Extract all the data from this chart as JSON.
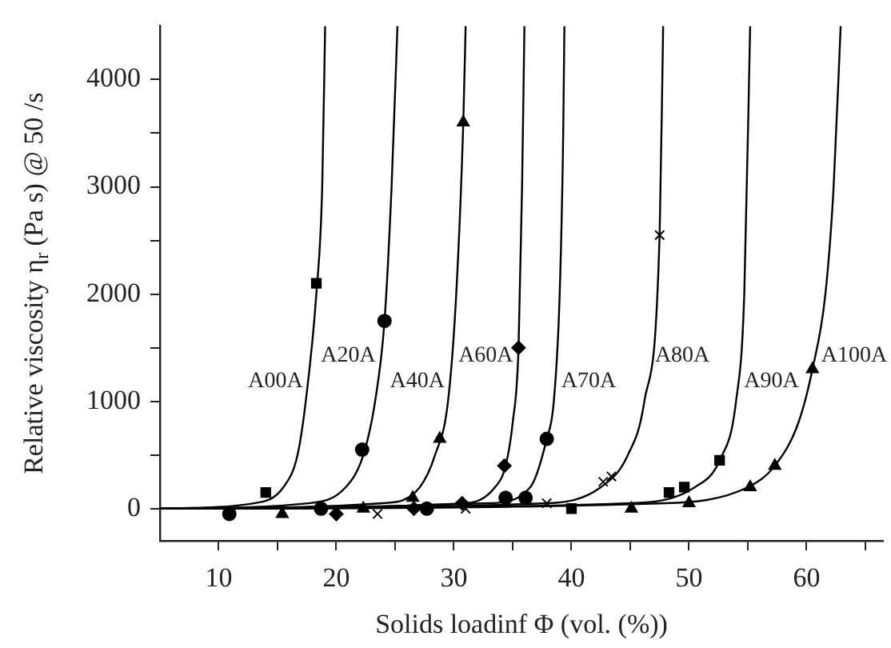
{
  "chart_data": {
    "type": "scatter",
    "xlabel": "Solids loadinf Φ (vol. (%))",
    "ylabel": "Relative viscosity η$_{r}$ (Pa s) @ 50 /s",
    "xlim": [
      5,
      66.5
    ],
    "ylim": [
      -300,
      4500
    ],
    "xticks": [
      10,
      {
        "value": 15,
        "label": null
      },
      20,
      {
        "value": 25,
        "label": null
      },
      30,
      {
        "value": 35,
        "label": null
      },
      40,
      {
        "value": 45,
        "label": null
      },
      50,
      {
        "value": 55,
        "label": null
      },
      60,
      {
        "value": 65,
        "label": null
      }
    ],
    "yticks": [
      0,
      {
        "value": 500,
        "label": null
      },
      1000,
      {
        "value": 1500,
        "label": null
      },
      2000,
      {
        "value": 2500,
        "label": null
      },
      3000,
      {
        "value": 3500,
        "label": null
      },
      4000
    ],
    "grid": false,
    "legend": false,
    "series": [
      {
        "type": "scatter",
        "marker": "square",
        "color": "#000000",
        "x": [
          14.0,
          18.3
        ],
        "values": [
          150,
          2100
        ]
      },
      {
        "type": "scatter",
        "marker": "circle",
        "color": "#000000",
        "x": [
          10.9,
          18.7,
          22.2,
          24.1
        ],
        "values": [
          -50,
          0,
          550,
          1750
        ]
      },
      {
        "type": "scatter",
        "marker": "triangle",
        "color": "#000000",
        "x": [
          15.4,
          22.3,
          26.5,
          28.8,
          30.8
        ],
        "values": [
          -50,
          0,
          100,
          650,
          3600
        ]
      },
      {
        "type": "scatter",
        "marker": "diamond",
        "color": "#000000",
        "x": [
          20.0,
          26.6,
          30.7,
          34.3,
          35.5
        ],
        "values": [
          -50,
          0,
          50,
          400,
          1500
        ]
      },
      {
        "type": "scatter",
        "marker": "circle",
        "color": "#000000",
        "x": [
          27.7,
          34.4,
          36.1,
          37.9
        ],
        "values": [
          0,
          100,
          100,
          650
        ]
      },
      {
        "type": "scatter",
        "marker": "cross",
        "color": "#000000",
        "x": [
          23.5,
          31.0,
          37.9,
          42.7,
          43.4,
          47.5
        ],
        "values": [
          -50,
          0,
          50,
          250,
          300,
          2550
        ]
      },
      {
        "type": "scatter",
        "marker": "square",
        "color": "#000000",
        "x": [
          40.0,
          48.3,
          49.6,
          52.6
        ],
        "values": [
          0,
          150,
          200,
          450
        ]
      },
      {
        "type": "scatter",
        "marker": "triangle",
        "color": "#000000",
        "x": [
          45.1,
          50.0,
          55.2,
          57.3,
          60.5
        ],
        "values": [
          0,
          50,
          200,
          400,
          1300
        ]
      },
      {
        "type": "line",
        "name": "A00A",
        "color": "#000000",
        "x": [
          5,
          13,
          15.5,
          16.7,
          17.4,
          18.3,
          18.8,
          19.05
        ],
        "values": [
          0,
          50,
          200,
          500,
          1000,
          2000,
          3000,
          4500
        ]
      },
      {
        "type": "line",
        "name": "A20A",
        "color": "#000000",
        "x": [
          5,
          17.6,
          20.8,
          22.3,
          23.3,
          24.1,
          24.7,
          25.2
        ],
        "values": [
          0,
          50,
          200,
          500,
          1000,
          1750,
          3000,
          4500
        ]
      },
      {
        "type": "line",
        "name": "A40A",
        "color": "#000000",
        "x": [
          5,
          23.9,
          27.1,
          28.4,
          29.5,
          30.2,
          30.8,
          31.0
        ],
        "values": [
          0,
          50,
          200,
          500,
          1000,
          2000,
          3600,
          4500
        ]
      },
      {
        "type": "line",
        "name": "A60A",
        "color": "#000000",
        "x": [
          5,
          31,
          33.5,
          34.4,
          35.0,
          35.5,
          35.8,
          36.0
        ],
        "values": [
          0,
          50,
          200,
          400,
          800,
          1500,
          3000,
          4500
        ]
      },
      {
        "type": "line",
        "name": "A70A",
        "color": "#000000",
        "x": [
          5,
          33,
          36.5,
          37.9,
          38.5,
          39.0,
          39.3,
          39.4
        ],
        "values": [
          0,
          50,
          200,
          650,
          1000,
          2000,
          3500,
          4500
        ]
      },
      {
        "type": "line",
        "name": "A80A",
        "color": "#000000",
        "x": [
          5,
          38,
          42.5,
          44.8,
          46.2,
          47.5,
          47.8
        ],
        "values": [
          0,
          50,
          200,
          500,
          1000,
          2550,
          4500
        ]
      },
      {
        "type": "line",
        "name": "A90A",
        "color": "#000000",
        "x": [
          5,
          45,
          50.5,
          52.6,
          54,
          54.7,
          55.2
        ],
        "values": [
          0,
          50,
          200,
          450,
          1000,
          2000,
          4500
        ]
      },
      {
        "type": "line",
        "name": "A100A",
        "color": "#000000",
        "x": [
          5,
          48,
          55,
          57.3,
          59.3,
          60.5,
          61.6,
          62.3,
          62.9
        ],
        "values": [
          0,
          50,
          200,
          400,
          800,
          1300,
          2000,
          3000,
          4500
        ]
      }
    ]
  }
}
